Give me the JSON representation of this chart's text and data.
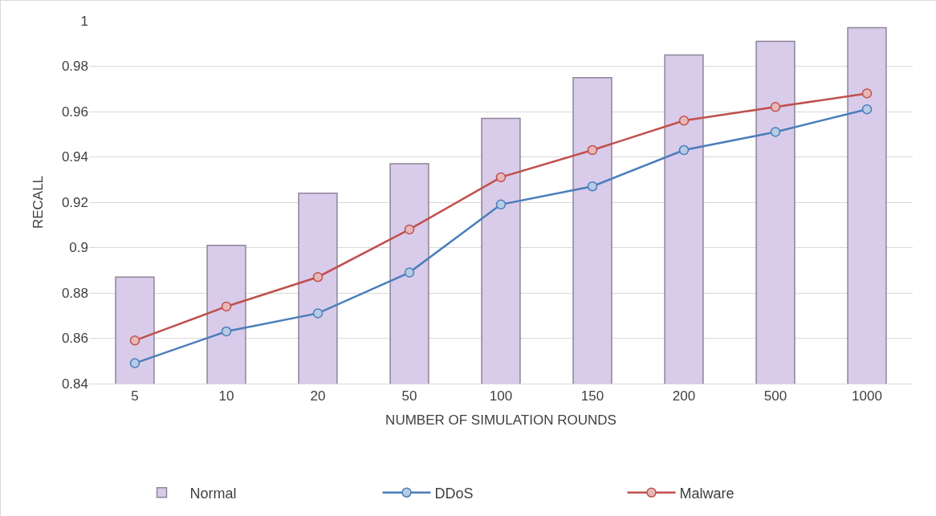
{
  "chart_data": {
    "type": "bar",
    "xlabel": "NUMBER OF SIMULATION ROUNDS",
    "ylabel": "RECALL",
    "categories": [
      "5",
      "10",
      "20",
      "50",
      "100",
      "150",
      "200",
      "500",
      "1000"
    ],
    "series": [
      {
        "name": "Normal",
        "color": "#d9cbea",
        "values": [
          0.887,
          0.901,
          0.924,
          0.937,
          0.957,
          0.975,
          0.985,
          0.991,
          0.997
        ]
      },
      {
        "name": "DDoS",
        "type": "line",
        "color": "#4a7ebb",
        "values": [
          0.849,
          0.863,
          0.871,
          0.889,
          0.919,
          0.927,
          0.943,
          0.951,
          0.961
        ]
      },
      {
        "name": "Malware",
        "type": "line",
        "color": "#c0504d",
        "values": [
          0.859,
          0.874,
          0.887,
          0.908,
          0.931,
          0.943,
          0.956,
          0.962,
          0.968
        ]
      }
    ],
    "ylim": [
      0.84,
      1
    ],
    "yticks": [
      0.84,
      0.86,
      0.88,
      0.9,
      0.92,
      0.94,
      0.96,
      0.98,
      1
    ],
    "grid": "y",
    "legend": "bottom",
    "marker": "circle",
    "line_style": "solid"
  }
}
